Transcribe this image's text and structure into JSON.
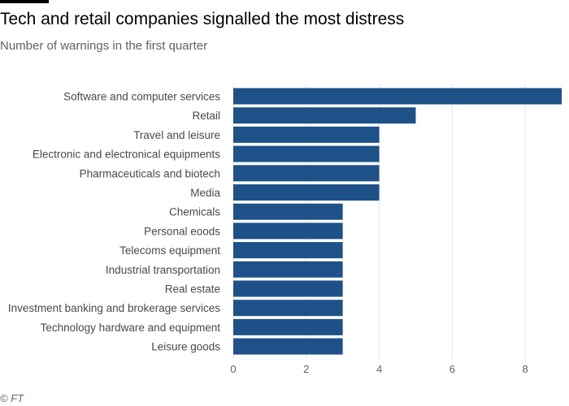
{
  "header": {
    "title": "Tech and retail companies signalled the most distress",
    "subtitle": "Number of warnings in the first quarter"
  },
  "footer": {
    "source": "© FT"
  },
  "colors": {
    "bar": "#1f5189",
    "grid": "#e6e2dd",
    "axis": "#66605c",
    "label": "#4d4845"
  },
  "chart_data": {
    "type": "bar",
    "orientation": "horizontal",
    "title": "Tech and retail companies signalled the most distress",
    "subtitle": "Number of warnings in the first quarter",
    "xlabel": "",
    "ylabel": "",
    "xlim": [
      0,
      9
    ],
    "xticks": [
      0,
      2,
      4,
      6,
      8
    ],
    "grid": "vertical",
    "categories": [
      "Software and computer services",
      "Retail",
      "Travel and leisure",
      "Electronic and electronical equipments",
      "Pharmaceuticals and biotech",
      "Media",
      "Chemicals",
      "Personal eoods",
      "Telecoms equipment",
      "Industrial transportation",
      "Real estate",
      "Investment banking and brokerage services",
      "Technology hardware and equipment",
      "Leisure goods"
    ],
    "values": [
      9,
      5,
      4,
      4,
      4,
      4,
      3,
      3,
      3,
      3,
      3,
      3,
      3,
      3
    ]
  }
}
